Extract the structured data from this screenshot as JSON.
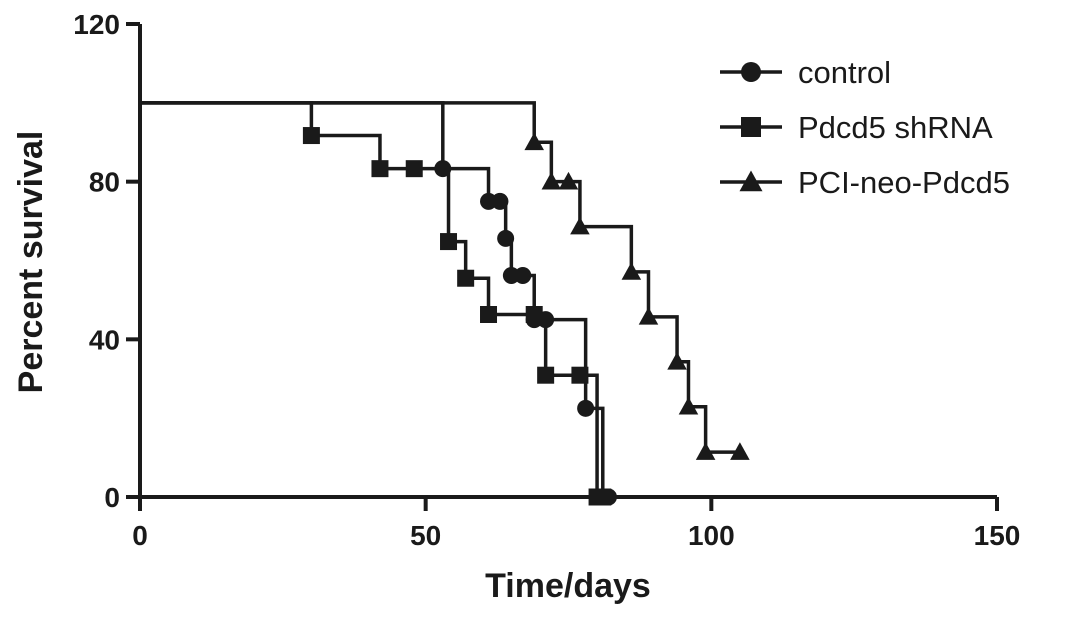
{
  "chart_data": {
    "type": "line",
    "style": "kaplan-meier step survival curve",
    "xlabel": "Time/days",
    "ylabel": "Percent survival",
    "xlim": [
      0,
      150
    ],
    "ylim": [
      0,
      120
    ],
    "xticks": [
      0,
      50,
      100,
      150
    ],
    "yticks": [
      0,
      40,
      80,
      120
    ],
    "grid": false,
    "legend_position": "top-right",
    "color": "#1a1a1a",
    "series": [
      {
        "name": "control",
        "marker": "circle",
        "steps": [
          [
            0,
            100
          ],
          [
            53,
            83.3
          ],
          [
            61,
            75
          ],
          [
            63,
            75
          ],
          [
            64,
            65.6
          ],
          [
            65,
            56.2
          ],
          [
            67,
            56.2
          ],
          [
            69,
            45
          ],
          [
            71,
            45
          ],
          [
            78,
            22.5
          ],
          [
            81,
            0
          ],
          [
            82,
            0
          ]
        ],
        "points": [
          [
            53,
            83.3
          ],
          [
            61,
            75
          ],
          [
            63,
            75
          ],
          [
            64,
            65.6
          ],
          [
            65,
            56.2
          ],
          [
            67,
            56.2
          ],
          [
            69,
            45
          ],
          [
            71,
            45
          ],
          [
            78,
            22.5
          ],
          [
            81,
            0
          ],
          [
            82,
            0
          ]
        ]
      },
      {
        "name": "Pdcd5 shRNA",
        "marker": "square",
        "steps": [
          [
            0,
            100
          ],
          [
            30,
            91.7
          ],
          [
            42,
            83.3
          ],
          [
            48,
            83.3
          ],
          [
            54,
            64.8
          ],
          [
            57,
            55.5
          ],
          [
            61,
            46.3
          ],
          [
            69,
            46.3
          ],
          [
            71,
            30.9
          ],
          [
            77,
            30.9
          ],
          [
            80,
            0
          ],
          [
            81,
            0
          ]
        ],
        "points": [
          [
            30,
            91.7
          ],
          [
            42,
            83.3
          ],
          [
            48,
            83.3
          ],
          [
            54,
            64.8
          ],
          [
            57,
            55.5
          ],
          [
            61,
            46.3
          ],
          [
            69,
            46.3
          ],
          [
            71,
            30.9
          ],
          [
            77,
            30.9
          ],
          [
            80,
            0
          ],
          [
            81,
            0
          ]
        ]
      },
      {
        "name": "PCI-neo-Pdcd5",
        "marker": "triangle",
        "steps": [
          [
            0,
            100
          ],
          [
            69,
            90
          ],
          [
            72,
            80
          ],
          [
            75,
            80
          ],
          [
            77,
            68.6
          ],
          [
            86,
            57.1
          ],
          [
            89,
            45.7
          ],
          [
            94,
            34.3
          ],
          [
            96,
            22.9
          ],
          [
            99,
            11.4
          ],
          [
            105,
            11.4
          ]
        ],
        "points": [
          [
            69,
            90
          ],
          [
            72,
            80
          ],
          [
            75,
            80
          ],
          [
            77,
            68.6
          ],
          [
            86,
            57.1
          ],
          [
            89,
            45.7
          ],
          [
            94,
            34.3
          ],
          [
            96,
            22.9
          ],
          [
            99,
            11.4
          ],
          [
            105,
            11.4
          ]
        ]
      }
    ]
  }
}
